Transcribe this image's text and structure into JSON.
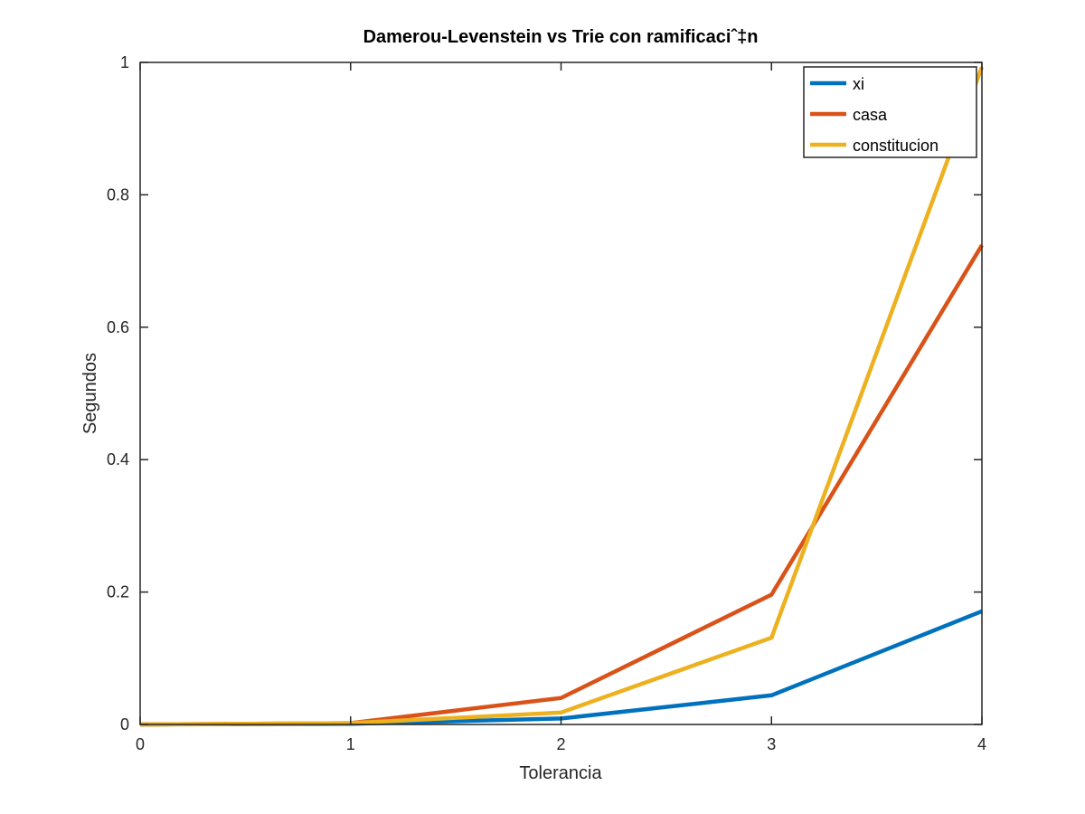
{
  "chart_data": {
    "type": "line",
    "title": "Damerou-Levenstein vs Trie con ramificaciˆ‡n",
    "xlabel": "Tolerancia",
    "ylabel": "Segundos",
    "x": [
      0,
      1,
      2,
      3,
      4
    ],
    "xlim": [
      0,
      4
    ],
    "ylim": [
      0,
      1
    ],
    "xticks": [
      0,
      1,
      2,
      3,
      4
    ],
    "yticks": [
      0,
      0.2,
      0.4,
      0.6,
      0.8,
      1
    ],
    "xtick_labels": [
      "0",
      "1",
      "2",
      "3",
      "4"
    ],
    "ytick_labels": [
      "0",
      "0.2",
      "0.4",
      "0.6",
      "0.8",
      "1"
    ],
    "grid": false,
    "legend_position": "top-right",
    "series": [
      {
        "name": "xi",
        "color": "#0072BD",
        "values": [
          0.0,
          0.001,
          0.009,
          0.044,
          0.171
        ]
      },
      {
        "name": "casa",
        "color": "#D95319",
        "values": [
          0.0,
          0.002,
          0.04,
          0.196,
          0.724
        ]
      },
      {
        "name": "constitucion",
        "color": "#EDB120",
        "values": [
          0.0,
          0.002,
          0.018,
          0.131,
          0.993
        ]
      }
    ]
  }
}
